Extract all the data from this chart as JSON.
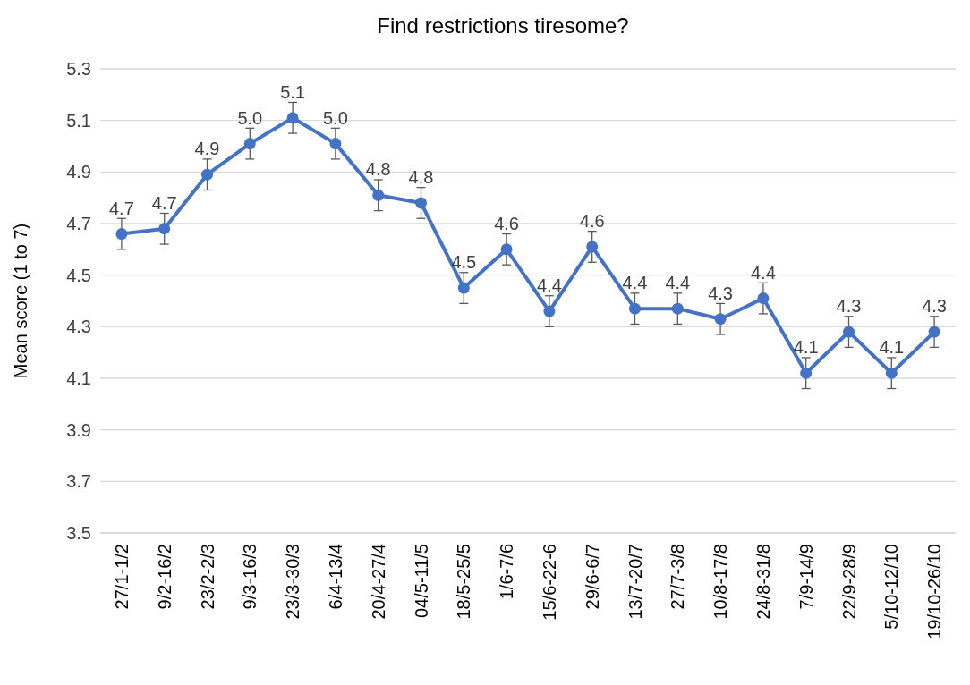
{
  "chart_data": {
    "type": "line",
    "title": "Find restrictions tiresome?",
    "ylabel": "Mean score (1 to 7)",
    "categories": [
      "27/1-1/2",
      "9/2-16/2",
      "23/2-2/3",
      "9/3-16/3",
      "23/3-30/3",
      "6/4-13/4",
      "20/4-27/4",
      "04/5-11/5",
      "18/5-25/5",
      "1/6-7/6",
      "15/6-22-6",
      "29/6-6/7",
      "13/7-20/7",
      "27/7-3/8",
      "10/8-17/8",
      "24/8-31/8",
      "7/9-14/9",
      "22/9-28/9",
      "5/10-12/10",
      "19/10-26/10"
    ],
    "series": [
      {
        "color": "#4472c4",
        "values": [
          4.66,
          4.68,
          4.89,
          5.01,
          5.11,
          5.01,
          4.81,
          4.78,
          4.45,
          4.6,
          4.36,
          4.61,
          4.37,
          4.37,
          4.33,
          4.41,
          4.12,
          4.28,
          4.12,
          4.28
        ],
        "errors": [
          0.06,
          0.06,
          0.06,
          0.06,
          0.06,
          0.06,
          0.06,
          0.06,
          0.06,
          0.06,
          0.06,
          0.06,
          0.06,
          0.06,
          0.06,
          0.06,
          0.06,
          0.06,
          0.06,
          0.06
        ],
        "value_labels": [
          "4.7",
          "4.7",
          "4.9",
          "5.0",
          "5.1",
          "5.0",
          "4.8",
          "4.8",
          "4.5",
          "4.6",
          "4.4",
          "4.6",
          "4.4",
          "4.4",
          "4.3",
          "4.4",
          "4.1",
          "4.3",
          "4.1",
          "4.3"
        ]
      }
    ],
    "ylim": [
      3.5,
      5.3
    ],
    "yticks": [
      3.5,
      3.7,
      3.9,
      4.1,
      4.3,
      4.5,
      4.7,
      4.9,
      5.1,
      5.3
    ],
    "grid": "y",
    "marker": "circle",
    "line_style": "solid"
  }
}
